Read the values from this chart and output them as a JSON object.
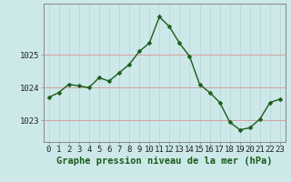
{
  "x": [
    0,
    1,
    2,
    3,
    4,
    5,
    6,
    7,
    8,
    9,
    10,
    11,
    12,
    13,
    14,
    15,
    16,
    17,
    18,
    19,
    20,
    21,
    22,
    23
  ],
  "y": [
    1023.7,
    1023.85,
    1024.1,
    1024.05,
    1024.0,
    1024.3,
    1024.2,
    1024.45,
    1024.7,
    1025.1,
    1025.35,
    1026.15,
    1025.85,
    1025.35,
    1024.95,
    1024.1,
    1023.85,
    1023.55,
    1022.95,
    1022.72,
    1022.78,
    1023.05,
    1023.55,
    1023.65
  ],
  "line_color": "#1a5c1a",
  "marker": "D",
  "marker_size": 2.5,
  "line_width": 1.0,
  "bg_color": "#cce8e8",
  "xlabel": "Graphe pression niveau de la mer (hPa)",
  "xlabel_fontsize": 7.5,
  "xlabel_color": "#1a5c1a",
  "ytick_labels": [
    "1023",
    "1024",
    "1025"
  ],
  "ytick_values": [
    1023,
    1024,
    1025
  ],
  "ylim": [
    1022.35,
    1026.55
  ],
  "xlim": [
    -0.5,
    23.5
  ],
  "xtick_labels": [
    "0",
    "1",
    "2",
    "3",
    "4",
    "5",
    "6",
    "7",
    "8",
    "9",
    "10",
    "11",
    "12",
    "13",
    "14",
    "15",
    "16",
    "17",
    "18",
    "19",
    "20",
    "21",
    "22",
    "23"
  ],
  "tick_fontsize": 6.5,
  "hline_color": "#d4a0a0",
  "vline_color": "#b8d4d4",
  "hline_values": [
    1023,
    1024,
    1025
  ],
  "vline_values": [
    0,
    1,
    2,
    3,
    4,
    5,
    6,
    7,
    8,
    9,
    10,
    11,
    12,
    13,
    14,
    15,
    16,
    17,
    18,
    19,
    20,
    21,
    22,
    23
  ],
  "spine_color": "#888888",
  "border_color": "#888888"
}
